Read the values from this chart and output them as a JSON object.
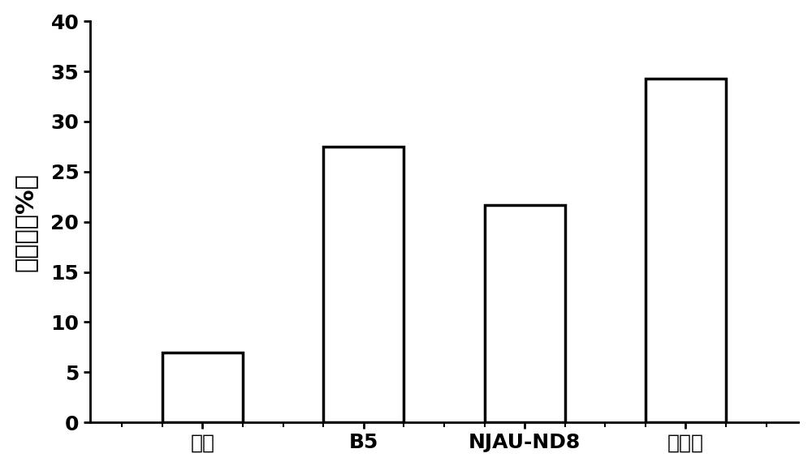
{
  "categories": [
    "空白",
    "B5",
    "NJAU-ND8",
    "组合菌"
  ],
  "values": [
    7.0,
    27.5,
    21.7,
    34.3
  ],
  "bar_color": "#ffffff",
  "bar_edgecolor": "#000000",
  "bar_linewidth": 2.5,
  "ylabel": "降解率（%）",
  "ylim": [
    0,
    40
  ],
  "yticks": [
    0,
    5,
    10,
    15,
    20,
    25,
    30,
    35,
    40
  ],
  "background_color": "#ffffff",
  "bar_width": 0.5,
  "ylabel_fontsize": 22,
  "tick_fontsize": 18,
  "xlabel_fontsize": 18,
  "spine_linewidth": 2.0,
  "figsize": [
    10.0,
    5.75
  ],
  "dpi": 100
}
